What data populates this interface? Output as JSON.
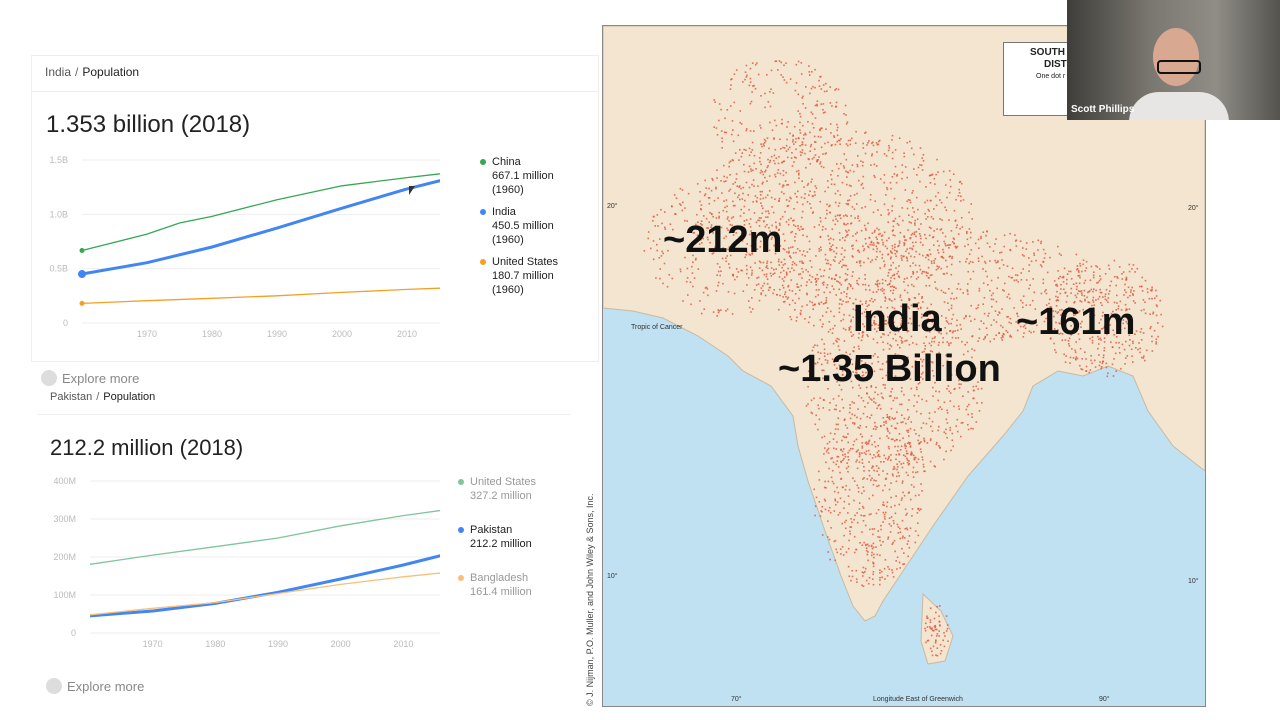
{
  "india_card": {
    "breadcrumb": {
      "country": "India",
      "separator": "/",
      "topic": "Population"
    },
    "headline": "1.353 billion (2018)",
    "explore": "Explore more",
    "legend": [
      {
        "name": "China",
        "value": "667.1 million",
        "year": "(1960)",
        "color": "#34a853"
      },
      {
        "name": "India",
        "value": "450.5 million",
        "year": "(1960)",
        "color": "#4285f4"
      },
      {
        "name": "United States",
        "value": "180.7 million",
        "year": "(1960)",
        "color": "#f4a025"
      }
    ]
  },
  "pakistan_card": {
    "breadcrumb": {
      "country": "Pakistan",
      "separator": "/",
      "topic": "Population"
    },
    "headline": "212.2 million (2018)",
    "explore": "Explore more",
    "legend": [
      {
        "name": "United States",
        "value": "327.2 million",
        "color": "#7fc69a"
      },
      {
        "name": "Pakistan",
        "value": "212.2 million",
        "color": "#4285f4"
      },
      {
        "name": "Bangladesh",
        "value": "161.4 million",
        "color": "#f6c07a"
      }
    ]
  },
  "chart_data": [
    {
      "type": "line",
      "yticks": [
        "1.5B",
        "1.0B",
        "0.5B",
        "0"
      ],
      "xticks": [
        "1970",
        "1980",
        "1990",
        "2000",
        "2010"
      ],
      "ylim": [
        0,
        1.5
      ],
      "series": [
        {
          "name": "China",
          "color": "#34a853",
          "x": [
            1960,
            1970,
            1975,
            1980,
            1990,
            2000,
            2010,
            2018
          ],
          "y": [
            0.667,
            0.818,
            0.92,
            0.981,
            1.135,
            1.263,
            1.338,
            1.393
          ]
        },
        {
          "name": "India",
          "color": "#4285f4",
          "x": [
            1960,
            1970,
            1980,
            1990,
            2000,
            2010,
            2018
          ],
          "y": [
            0.4505,
            0.555,
            0.699,
            0.873,
            1.056,
            1.234,
            1.353
          ]
        },
        {
          "name": "United States",
          "color": "#f4a025",
          "x": [
            1960,
            1970,
            1980,
            1990,
            2000,
            2010,
            2018
          ],
          "y": [
            0.1807,
            0.205,
            0.227,
            0.25,
            0.282,
            0.309,
            0.327
          ]
        }
      ]
    },
    {
      "type": "line",
      "yticks": [
        "400M",
        "300M",
        "200M",
        "100M",
        "0"
      ],
      "xticks": [
        "1970",
        "1980",
        "1990",
        "2000",
        "2010"
      ],
      "ylim": [
        0,
        400
      ],
      "series": [
        {
          "name": "United States",
          "color": "#7fc69a",
          "x": [
            1960,
            1970,
            1980,
            1990,
            2000,
            2010,
            2018
          ],
          "y": [
            180.7,
            205,
            227,
            250,
            282,
            309,
            327.2
          ]
        },
        {
          "name": "Pakistan",
          "color": "#4285f4",
          "x": [
            1960,
            1970,
            1980,
            1990,
            2000,
            2010,
            2018
          ],
          "y": [
            45,
            58,
            78,
            107,
            142,
            179,
            212.2
          ]
        },
        {
          "name": "Bangladesh",
          "color": "#f6c07a",
          "x": [
            1960,
            1970,
            1980,
            1990,
            2000,
            2010,
            2018
          ],
          "y": [
            48,
            65,
            80,
            104,
            128,
            148,
            161.4
          ]
        }
      ]
    }
  ],
  "map": {
    "pakistan_label": "~212m",
    "india_label": "India",
    "india_value": "~1.35 Billion",
    "bangladesh_label": "~161m",
    "tropic_label": "Tropic of Cancer",
    "longitude_label": "Longitude East of Greenwich",
    "lon_ticks": [
      "70°",
      "90°"
    ],
    "lat_ticks": [
      "20°",
      "20°",
      "10°",
      "10°"
    ],
    "credit": "© J. Nijman, P.O. Muller, and John Wiley & Sons, Inc.",
    "legend_title_1": "SOUTH",
    "legend_title_2": "DIST",
    "legend_sub": "One dot r",
    "colors": {
      "ocean": "#bfe1f2",
      "land": "#f3e5cf",
      "dots": "#e0513a"
    }
  },
  "webcam": {
    "name": "Scott Phillips"
  }
}
